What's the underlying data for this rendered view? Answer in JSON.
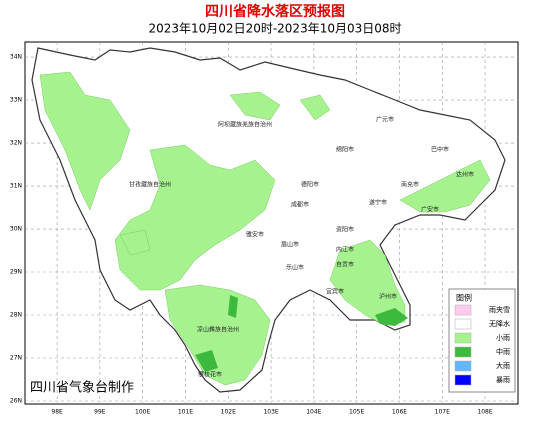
{
  "header": {
    "title": "四川省降水落区预报图",
    "subtitle": "2023年10月02日20时-2023年10月03日08时"
  },
  "map": {
    "xlim": [
      97.25,
      108.77
    ],
    "ylim": [
      25.93,
      34.35
    ],
    "xticks": [
      {
        "value": 98,
        "label": "98E"
      },
      {
        "value": 99,
        "label": "99E"
      },
      {
        "value": 100,
        "label": "100E"
      },
      {
        "value": 101,
        "label": "101E"
      },
      {
        "value": 102,
        "label": "102E"
      },
      {
        "value": 103,
        "label": "103E"
      },
      {
        "value": 104,
        "label": "104E"
      },
      {
        "value": 105,
        "label": "105E"
      },
      {
        "value": 106,
        "label": "106E"
      },
      {
        "value": 107,
        "label": "107E"
      },
      {
        "value": 108,
        "label": "108E"
      }
    ],
    "yticks": [
      {
        "value": 26,
        "label": "26N"
      },
      {
        "value": 27,
        "label": "27N"
      },
      {
        "value": 28,
        "label": "28N"
      },
      {
        "value": 29,
        "label": "29N"
      },
      {
        "value": 30,
        "label": "30N"
      },
      {
        "value": 31,
        "label": "31N"
      },
      {
        "value": 32,
        "label": "32N"
      },
      {
        "value": 33,
        "label": "33N"
      },
      {
        "value": 34,
        "label": "34N"
      }
    ],
    "cities": [
      "成都市",
      "德阳市",
      "绵阳市",
      "广元市",
      "巴中市",
      "达州市",
      "南充市",
      "遂宁市",
      "广安市",
      "资阳市",
      "内江市",
      "眉山市",
      "雅安市",
      "乐山市",
      "自贡市",
      "宜宾市",
      "泸州市",
      "阿坝藏族羌族自治州",
      "甘孜藏族自治州",
      "凉山彝族自治州",
      "攀枝花市"
    ]
  },
  "legend": {
    "title": "图例",
    "items": [
      {
        "name": "雨夹雪",
        "color": "#ffccee"
      },
      {
        "name": "无降水",
        "color": "#ffffff"
      },
      {
        "name": "小雨",
        "color": "#a6f28f"
      },
      {
        "name": "中雨",
        "color": "#3dba3d"
      },
      {
        "name": "大雨",
        "color": "#61b8ff"
      },
      {
        "name": "暴雨",
        "color": "#0000fe"
      }
    ]
  },
  "footer": "四川省气象台制作"
}
